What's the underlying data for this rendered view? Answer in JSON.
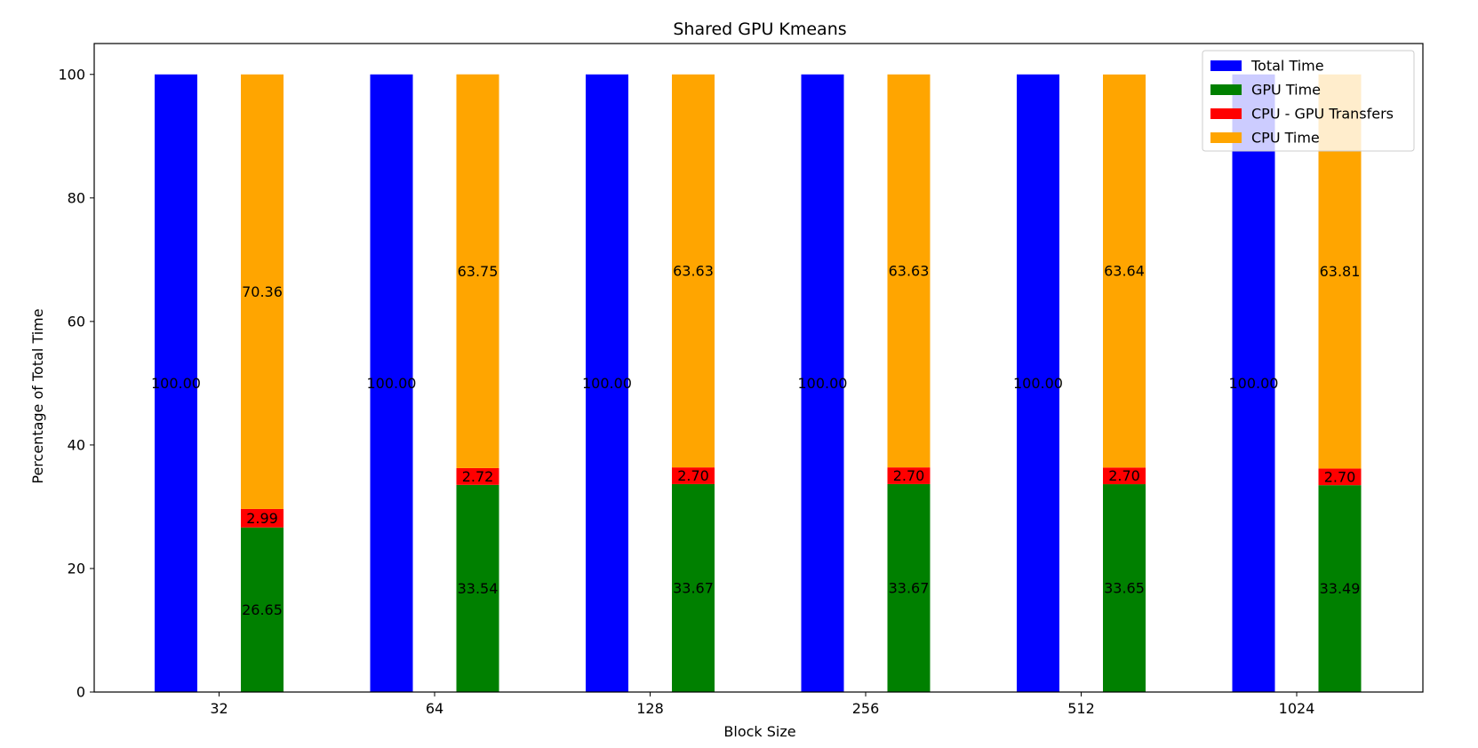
{
  "chart_data": {
    "type": "bar",
    "title": "Shared GPU Kmeans",
    "xlabel": "Block Size",
    "ylabel": "Percentage of Total Time",
    "categories": [
      "32",
      "64",
      "128",
      "256",
      "512",
      "1024"
    ],
    "ylim": [
      0,
      105
    ],
    "yticks": [
      "0",
      "20",
      "40",
      "60",
      "80",
      "100"
    ],
    "series": [
      {
        "name": "Total Time",
        "color": "#0000ff",
        "values": [
          100.0,
          100.0,
          100.0,
          100.0,
          100.0,
          100.0
        ],
        "labels": [
          "100.00",
          "100.00",
          "100.00",
          "100.00",
          "100.00",
          "100.00"
        ],
        "stack": "total"
      },
      {
        "name": "GPU Time",
        "color": "#008000",
        "values": [
          26.65,
          33.54,
          33.67,
          33.67,
          33.65,
          33.49
        ],
        "labels": [
          "26.65",
          "33.54",
          "33.67",
          "33.67",
          "33.65",
          "33.49"
        ],
        "stack": "breakdown"
      },
      {
        "name": "CPU - GPU Transfers",
        "color": "#ff0000",
        "values": [
          2.99,
          2.72,
          2.7,
          2.7,
          2.7,
          2.7
        ],
        "labels": [
          "2.99",
          "2.72",
          "2.70",
          "2.70",
          "2.70",
          "2.70"
        ],
        "stack": "breakdown"
      },
      {
        "name": "CPU Time",
        "color": "#ffa500",
        "values": [
          70.36,
          63.75,
          63.63,
          63.63,
          63.64,
          63.81
        ],
        "labels": [
          "70.36",
          "63.75",
          "63.63",
          "63.63",
          "63.64",
          "63.81"
        ],
        "stack": "breakdown"
      }
    ],
    "grid": false,
    "legend_position": "top-right"
  }
}
